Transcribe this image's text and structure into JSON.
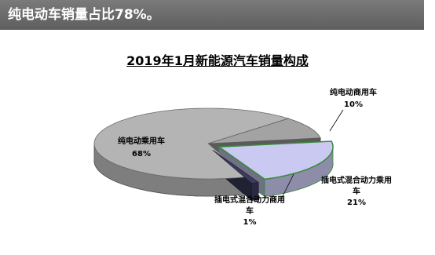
{
  "header": {
    "text": "纯电动车销量占比78%。"
  },
  "chart_data": {
    "type": "pie",
    "title": "2019年1月新能源汽车销量构成",
    "categories": [
      "纯电动乘用车",
      "纯电动商用车",
      "插电式混合动力乘用车",
      "插电式混合动力商用车"
    ],
    "values": [
      68,
      10,
      21,
      1
    ],
    "value_labels": [
      "68%",
      "10%",
      "21%",
      "1%"
    ],
    "colors": [
      "#b4b4b4",
      "#a3a3a3",
      "#c9c9f2",
      "#3c3c5e"
    ],
    "exploded": [
      false,
      false,
      true,
      true
    ]
  }
}
